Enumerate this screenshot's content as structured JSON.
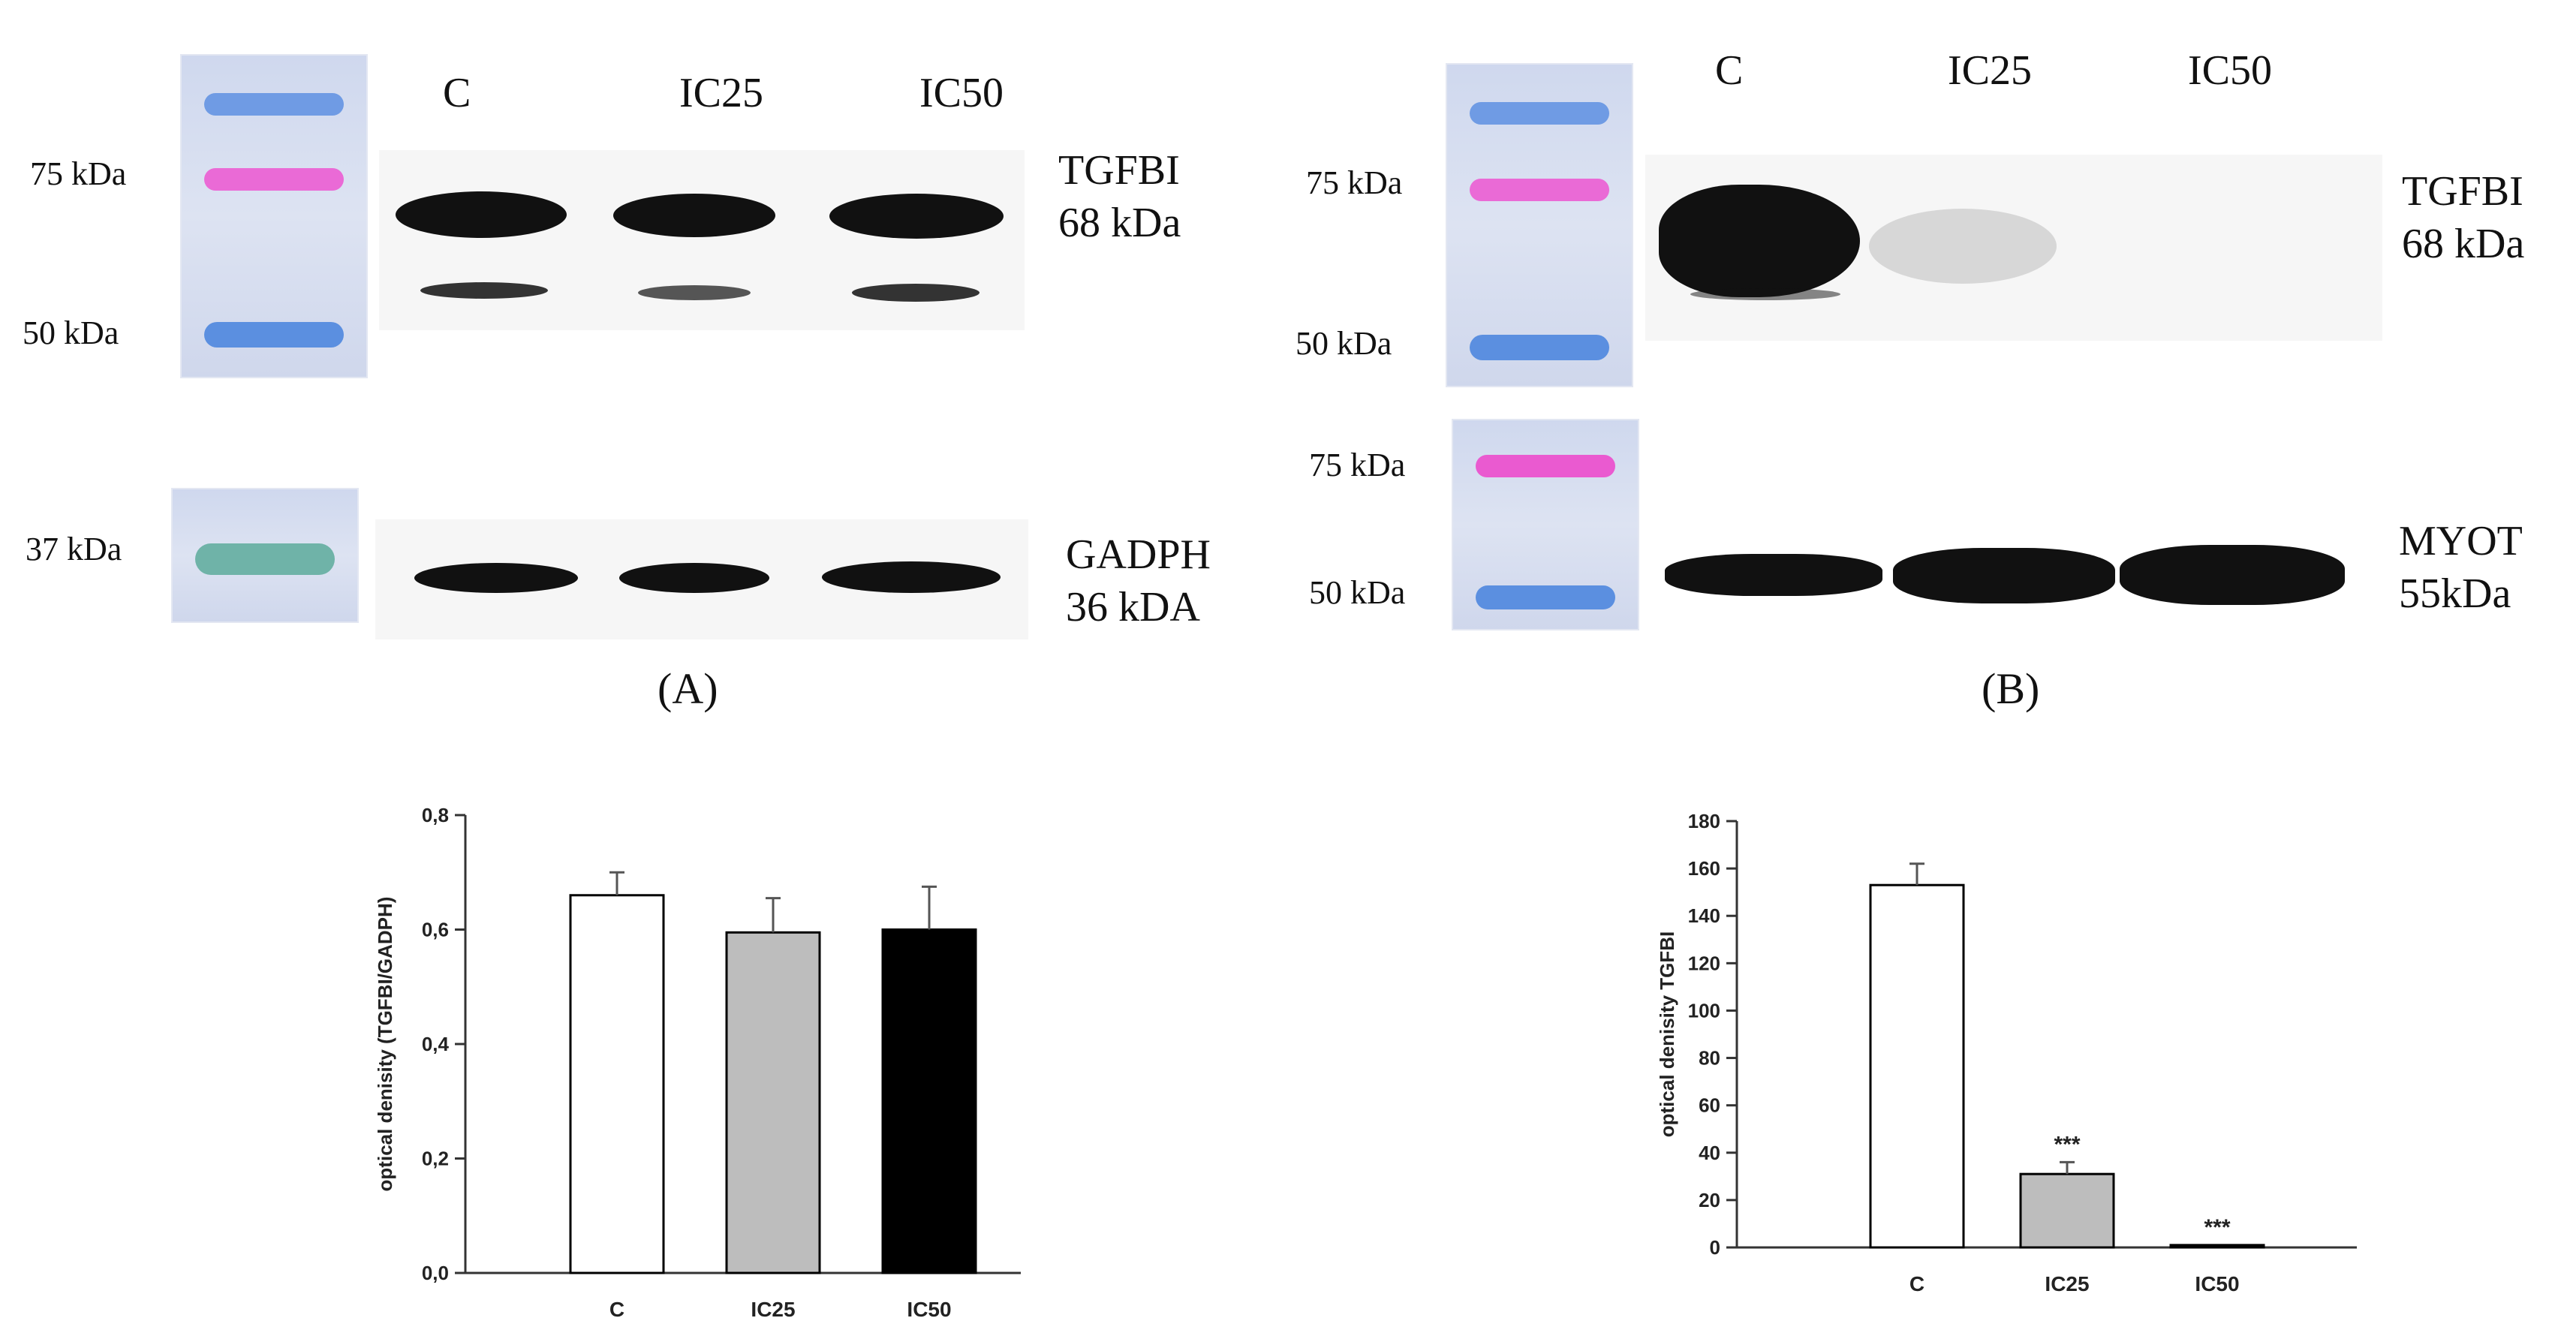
{
  "panel_a": {
    "label": "(A)",
    "lanes": [
      "C",
      "IC25",
      "IC50"
    ],
    "top_markers": [
      "75 kDa",
      "50 kDa"
    ],
    "bottom_marker": "37 kDa",
    "top_protein": "TGFBI",
    "top_size": "68 kDa",
    "bottom_protein": "GADPH",
    "bottom_size": "36 kDA"
  },
  "panel_b": {
    "label": "(B)",
    "lanes": [
      "C",
      "IC25",
      "IC50"
    ],
    "top_markers": [
      "75 kDa",
      "50 kDa"
    ],
    "bottom_markers": [
      "75 kDa",
      "50 kDa"
    ],
    "top_protein": "TGFBI",
    "top_size": "68 kDa",
    "bottom_protein": "MYOT",
    "bottom_size": "55kDa"
  },
  "colors": {
    "ladder_blue": "#5b8fe0",
    "ladder_magenta": "#e85ad0",
    "ladder_teal": "#6fb3a8",
    "bar_c": "#ffffff",
    "bar_ic25": "#bdbdbd",
    "bar_ic50": "#000000"
  },
  "chart_data": [
    {
      "type": "bar",
      "title": "",
      "xlabel": "",
      "ylabel": "optical denisity (TGFBI/GADPH)",
      "categories": [
        "C",
        "IC25",
        "IC50"
      ],
      "values": [
        0.66,
        0.595,
        0.6
      ],
      "errors": [
        0.04,
        0.06,
        0.075
      ],
      "annotations": [
        "",
        "",
        ""
      ],
      "ylim": [
        0,
        0.8
      ],
      "yticks": [
        "0,0",
        "0,2",
        "0,4",
        "0,6",
        "0,8"
      ],
      "ytick_values": [
        0,
        0.2,
        0.4,
        0.6,
        0.8
      ],
      "grid": false
    },
    {
      "type": "bar",
      "title": "",
      "xlabel": "",
      "ylabel": "optical denisity TGFBI",
      "categories": [
        "C",
        "IC25",
        "IC50"
      ],
      "values": [
        153,
        31,
        1
      ],
      "errors": [
        9,
        5,
        0
      ],
      "annotations": [
        "",
        "***",
        "***"
      ],
      "ylim": [
        0,
        180
      ],
      "yticks": [
        "0",
        "20",
        "40",
        "60",
        "80",
        "100",
        "120",
        "140",
        "160",
        "180"
      ],
      "ytick_values": [
        0,
        20,
        40,
        60,
        80,
        100,
        120,
        140,
        160,
        180
      ],
      "grid": false
    }
  ]
}
